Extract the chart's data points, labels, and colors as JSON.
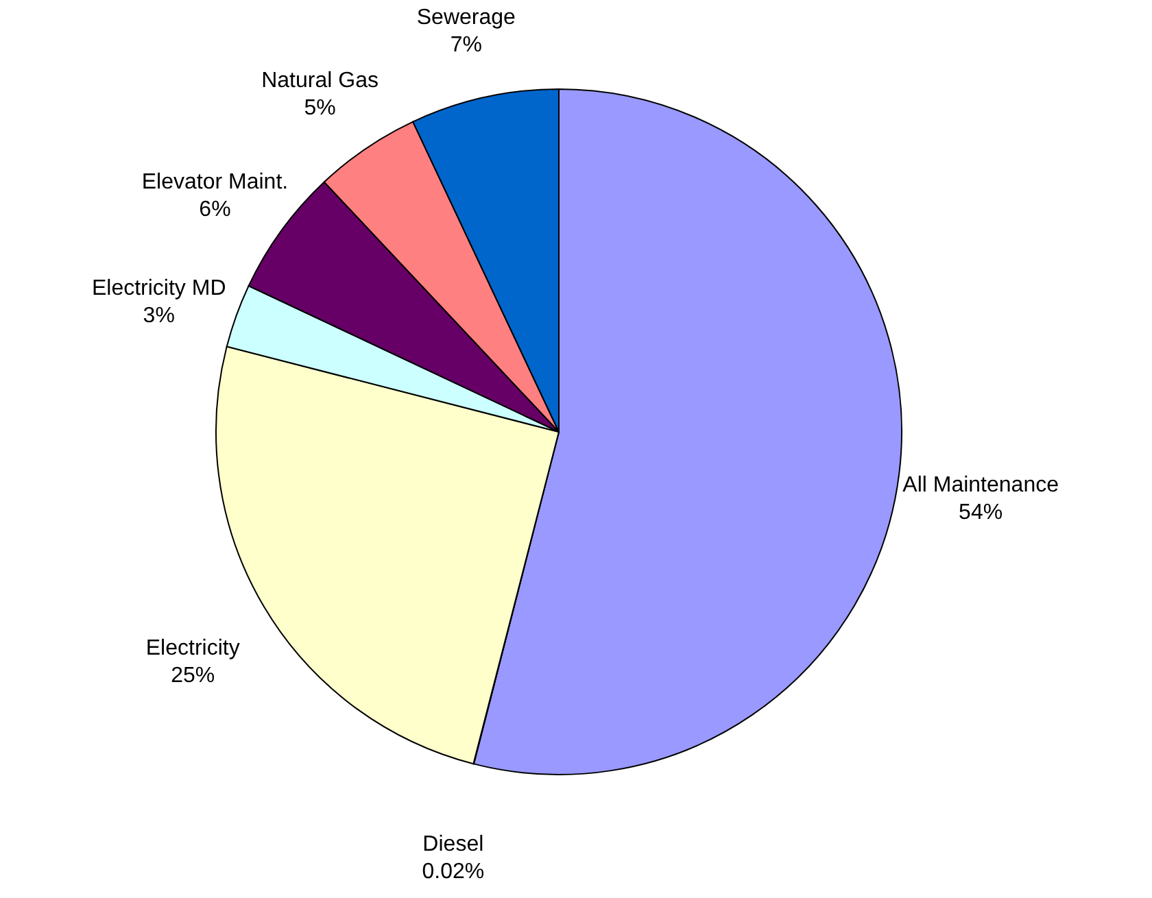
{
  "chart_data": {
    "type": "pie",
    "categories": [
      "All Maintenance",
      "Diesel",
      "Electricity",
      "Electricity MD",
      "Elevator Maint.",
      "Natural Gas",
      "Sewerage"
    ],
    "values": [
      54,
      0.02,
      25,
      3,
      6,
      5,
      7
    ],
    "value_labels": [
      "54%",
      "0.02%",
      "25%",
      "3%",
      "6%",
      "5%",
      "7%"
    ],
    "colors": [
      "#9999ff",
      "#993366",
      "#ffffcc",
      "#ccffff",
      "#660066",
      "#ff8080",
      "#0066cc"
    ]
  }
}
